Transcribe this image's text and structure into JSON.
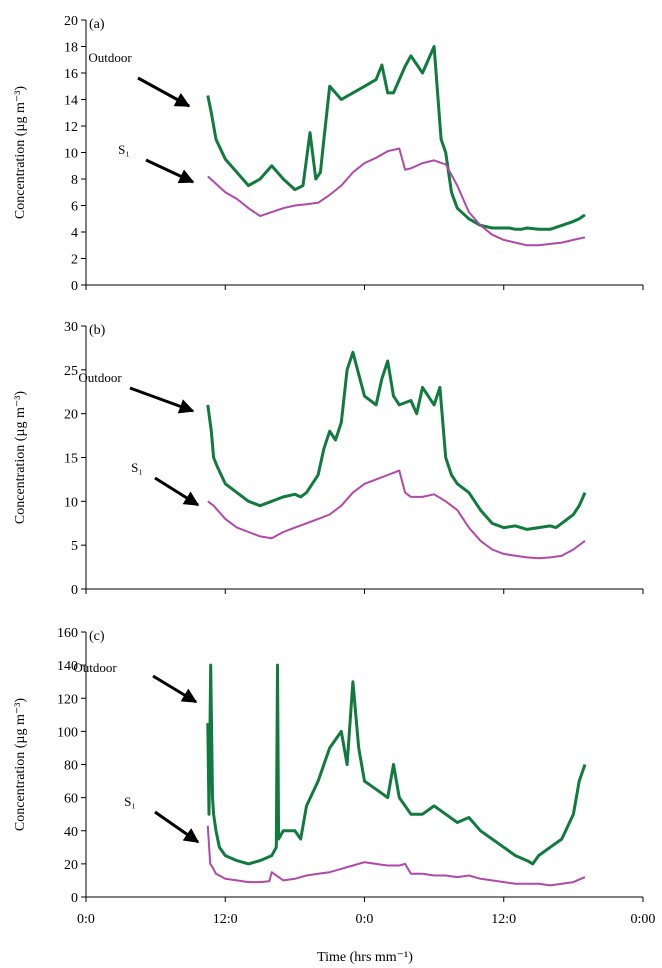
{
  "figure": {
    "xlabel": "Time (hrs mm⁻¹)",
    "colors": {
      "outdoor": "#117a3e",
      "s1": "#b04aa8",
      "axis": "#000000"
    }
  },
  "chart_data": [
    {
      "type": "line",
      "panel_label": "(a)",
      "ylabel": "Concentration (µg m⁻³)",
      "ylim": [
        0,
        20
      ],
      "yticks": [
        0,
        2,
        4,
        6,
        8,
        10,
        12,
        14,
        16,
        18,
        20
      ],
      "xlim": [
        0,
        48
      ],
      "xticks": [
        0,
        12,
        24,
        36,
        48
      ],
      "xticklabels": [
        "0:0",
        "12:0",
        "0:0",
        "12:0",
        "0:00"
      ],
      "grid": false,
      "annotations": [
        {
          "text": "Outdoor",
          "series": "outdoor"
        },
        {
          "text": "S₁",
          "series": "s1"
        }
      ],
      "series": [
        {
          "name": "Outdoor",
          "key": "outdoor",
          "x": [
            10.5,
            10.8,
            11.2,
            12,
            13,
            14,
            15,
            16,
            17,
            18,
            18.7,
            19.3,
            19.8,
            20.2,
            20.5,
            21,
            22,
            23,
            24,
            25,
            25.5,
            26,
            26.5,
            27,
            27.5,
            28,
            29,
            30,
            30.6,
            31,
            31.5,
            32,
            33,
            34,
            35,
            36,
            36.5,
            37,
            37.5,
            38,
            39,
            40,
            41,
            42,
            42.5,
            43
          ],
          "values": [
            14.3,
            13,
            11,
            9.5,
            8.5,
            7.5,
            8,
            9,
            8,
            7.2,
            7.5,
            11.5,
            8,
            8.5,
            11,
            15,
            14,
            14.5,
            15,
            15.5,
            16.6,
            14.5,
            14.5,
            15.5,
            16.5,
            17.3,
            16,
            18,
            11,
            10,
            7,
            5.8,
            5,
            4.5,
            4.3,
            4.3,
            4.3,
            4.2,
            4.2,
            4.3,
            4.2,
            4.2,
            4.5,
            4.8,
            5.0,
            5.3
          ]
        },
        {
          "name": "S₁",
          "key": "s1",
          "x": [
            10.5,
            11,
            12,
            13,
            14,
            15,
            16,
            17,
            18,
            19,
            20,
            21,
            22,
            23,
            24,
            25,
            26,
            27,
            27.5,
            28,
            29,
            30,
            31,
            32,
            33,
            34,
            35,
            36,
            37,
            38,
            39,
            40,
            41,
            42,
            43
          ],
          "values": [
            8.2,
            7.8,
            7,
            6.5,
            5.8,
            5.2,
            5.5,
            5.8,
            6,
            6.1,
            6.2,
            6.8,
            7.5,
            8.5,
            9.2,
            9.6,
            10.1,
            10.3,
            8.7,
            8.8,
            9.2,
            9.4,
            9.1,
            7.5,
            5.5,
            4.5,
            3.8,
            3.4,
            3.2,
            3.0,
            3.0,
            3.1,
            3.2,
            3.4,
            3.6
          ]
        }
      ]
    },
    {
      "type": "line",
      "panel_label": "(b)",
      "ylabel": "Concentration (µg m⁻³)",
      "ylim": [
        0,
        30
      ],
      "yticks": [
        0,
        5,
        10,
        15,
        20,
        25,
        30
      ],
      "xlim": [
        0,
        48
      ],
      "xticks": [
        0,
        12,
        24,
        36,
        48
      ],
      "xticklabels": [
        "0:0",
        "12:0",
        "0:0",
        "12:0",
        "0:00"
      ],
      "grid": false,
      "annotations": [
        {
          "text": "Outdoor",
          "series": "outdoor"
        },
        {
          "text": "S₁",
          "series": "s1"
        }
      ],
      "series": [
        {
          "name": "Outdoor",
          "key": "outdoor",
          "x": [
            10.5,
            10.8,
            11,
            11.3,
            12,
            13,
            14,
            15,
            16,
            17,
            18,
            18.5,
            19,
            19.5,
            20,
            20.5,
            21,
            21.5,
            22,
            22.5,
            23,
            24,
            25,
            25.5,
            26,
            26.5,
            27,
            28,
            28.5,
            29,
            30,
            30.5,
            31,
            31.5,
            32,
            33,
            34,
            35,
            36,
            37,
            38,
            39,
            40,
            40.5,
            41,
            41.5,
            42,
            42.5,
            43
          ],
          "values": [
            21,
            18,
            15,
            14,
            12,
            11,
            10,
            9.5,
            10,
            10.5,
            10.8,
            10.5,
            11,
            12,
            13,
            16,
            18,
            17,
            19,
            25,
            27,
            22,
            21,
            24,
            26,
            22,
            21,
            21.5,
            20,
            23,
            21,
            23,
            15,
            13,
            12,
            11,
            9,
            7.5,
            7,
            7.2,
            6.8,
            7,
            7.2,
            7,
            7.5,
            8,
            8.5,
            9.5,
            11
          ]
        },
        {
          "name": "S₁",
          "key": "s1",
          "x": [
            10.5,
            11,
            12,
            13,
            14,
            15,
            16,
            17,
            18,
            19,
            20,
            21,
            22,
            23,
            24,
            25,
            26,
            27,
            27.5,
            28,
            29,
            30,
            31,
            32,
            33,
            34,
            35,
            36,
            37,
            38,
            39,
            40,
            41,
            42,
            43
          ],
          "values": [
            10,
            9.5,
            8,
            7,
            6.5,
            6,
            5.8,
            6.5,
            7,
            7.5,
            8,
            8.5,
            9.5,
            11,
            12,
            12.5,
            13,
            13.5,
            11,
            10.5,
            10.5,
            10.8,
            10,
            9,
            7,
            5.5,
            4.5,
            4,
            3.8,
            3.6,
            3.5,
            3.6,
            3.8,
            4.5,
            5.5
          ]
        }
      ]
    },
    {
      "type": "line",
      "panel_label": "(c)",
      "ylabel": "Concentration (µg m⁻³)",
      "ylim": [
        0,
        160
      ],
      "yticks": [
        0,
        20,
        40,
        60,
        80,
        100,
        120,
        140,
        160
      ],
      "xlim": [
        0,
        48
      ],
      "xticks": [
        0,
        12,
        24,
        36,
        48
      ],
      "xticklabels": [
        "0:0",
        "12:0",
        "0:0",
        "12:0",
        "0:00"
      ],
      "grid": false,
      "annotations": [
        {
          "text": "Outdoor",
          "series": "outdoor"
        },
        {
          "text": "S₁",
          "series": "s1"
        }
      ],
      "series": [
        {
          "name": "Outdoor",
          "key": "outdoor",
          "x": [
            10.5,
            10.6,
            10.75,
            10.9,
            11.0,
            11.2,
            11.5,
            12,
            13,
            14,
            15,
            16,
            16.4,
            16.5,
            16.6,
            17,
            18,
            18.5,
            19,
            20,
            21,
            22,
            22.5,
            23,
            23.5,
            24,
            25,
            26,
            26.5,
            27,
            27.5,
            28,
            29,
            30,
            31,
            32,
            33,
            34,
            35,
            36,
            37,
            38,
            38.5,
            39,
            40,
            41,
            42,
            42.5,
            43
          ],
          "values": [
            105,
            50,
            140,
            60,
            50,
            40,
            30,
            25,
            22,
            20,
            22,
            25,
            30,
            140,
            35,
            40,
            40,
            35,
            55,
            70,
            90,
            100,
            80,
            130,
            90,
            70,
            65,
            60,
            80,
            60,
            55,
            50,
            50,
            55,
            50,
            45,
            48,
            40,
            35,
            30,
            25,
            22,
            20,
            25,
            30,
            35,
            50,
            70,
            80
          ]
        },
        {
          "name": "S₁",
          "key": "s1",
          "x": [
            10.5,
            10.7,
            10.9,
            11.2,
            12,
            13,
            14,
            15,
            15.8,
            16,
            17,
            18,
            19,
            20,
            21,
            22,
            23,
            24,
            25,
            26,
            27,
            27.5,
            28,
            29,
            30,
            31,
            32,
            33,
            34,
            35,
            36,
            37,
            38,
            39,
            40,
            41,
            42,
            43
          ],
          "values": [
            43,
            20,
            18,
            14,
            11,
            10,
            9,
            9,
            9.5,
            15,
            10,
            11,
            13,
            14,
            15,
            17,
            19,
            21,
            20,
            19,
            19,
            20,
            14,
            14,
            13,
            13,
            12,
            13,
            11,
            10,
            9,
            8,
            8,
            8,
            7,
            8,
            9,
            12
          ]
        }
      ]
    }
  ]
}
